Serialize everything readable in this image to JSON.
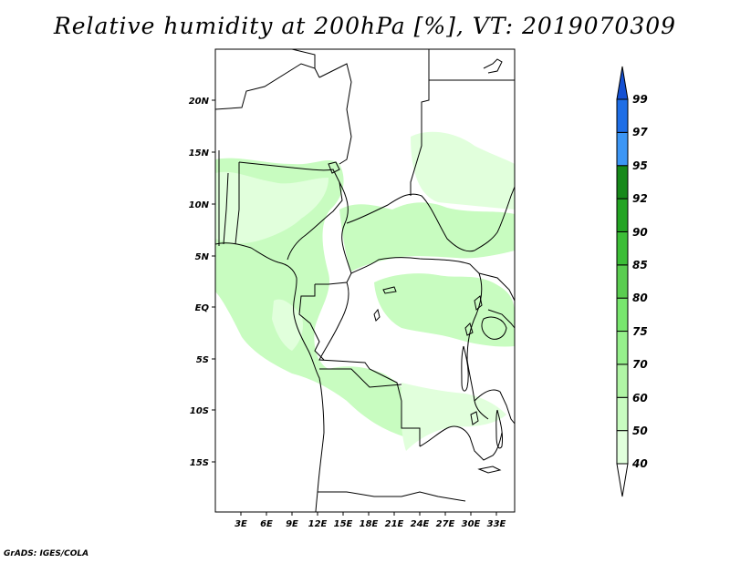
{
  "title": "Relative humidity at 200hPa [%], VT: 2019070309",
  "credit": "GrADS: IGES/COLA",
  "map": {
    "lon_ticks": [
      "3E",
      "6E",
      "9E",
      "12E",
      "15E",
      "18E",
      "21E",
      "24E",
      "27E",
      "30E",
      "33E"
    ],
    "lat_ticks": [
      "20N",
      "15N",
      "10N",
      "5N",
      "EQ",
      "5S",
      "10S",
      "15S"
    ],
    "lon_range_deg": [
      0,
      35
    ],
    "lat_range_deg": [
      -20,
      24.5
    ],
    "fill_regions": [
      "west-africa-and-gulf-of-guinea",
      "central-african-republic-to-sudan",
      "congo-basin-east",
      "angola-zambia-corridor"
    ]
  },
  "colorbar": {
    "label_values": [
      "40",
      "50",
      "60",
      "70",
      "75",
      "80",
      "85",
      "90",
      "92",
      "95",
      "97",
      "99"
    ],
    "colors": [
      "#ffffff",
      "#e1ffdc",
      "#c8fcc0",
      "#b0f5a5",
      "#96f08c",
      "#78e66e",
      "#5acd50",
      "#3cbe37",
      "#23a423",
      "#17891a",
      "#3c96f5",
      "#1e6ee6",
      "#1450d2"
    ]
  }
}
